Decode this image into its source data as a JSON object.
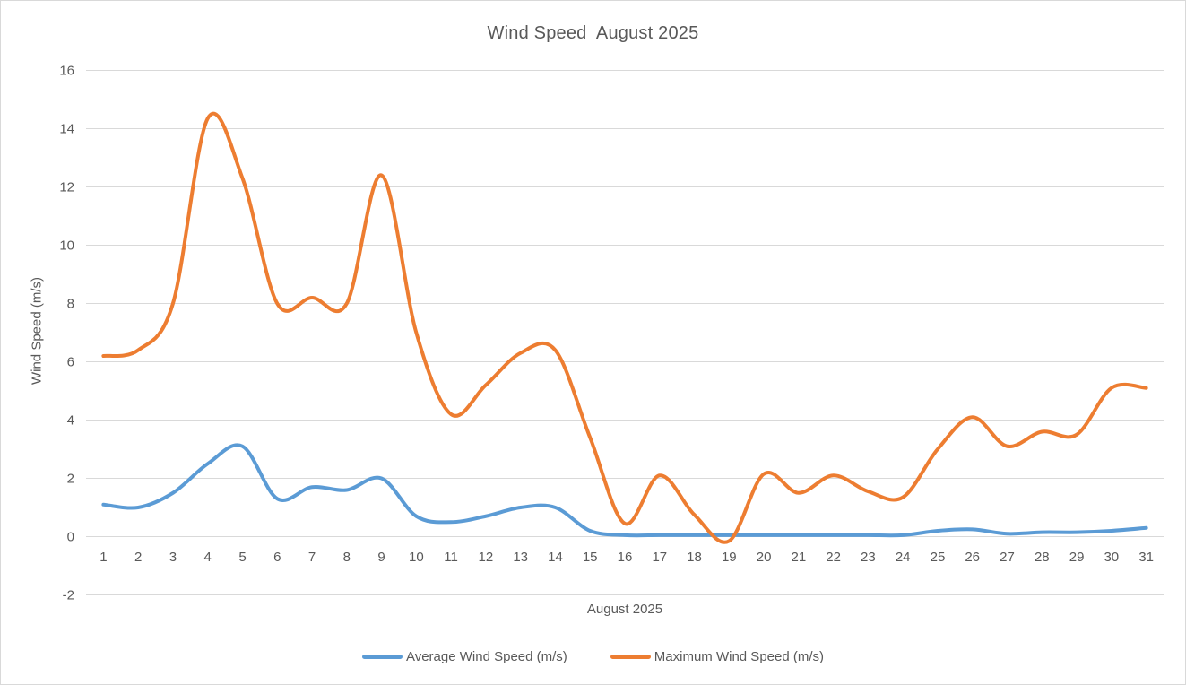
{
  "chart_data": {
    "type": "line",
    "title": "Wind Speed  August 2025",
    "xlabel": "August 2025",
    "ylabel": "Wind Speed (m/s)",
    "x": [
      1,
      2,
      3,
      4,
      5,
      6,
      7,
      8,
      9,
      10,
      11,
      12,
      13,
      14,
      15,
      16,
      17,
      18,
      19,
      20,
      21,
      22,
      23,
      24,
      25,
      26,
      27,
      28,
      29,
      30,
      31
    ],
    "y_ticks": [
      16,
      14,
      12,
      10,
      8,
      6,
      4,
      2,
      0,
      -2
    ],
    "ylim": [
      -2,
      16
    ],
    "grid": true,
    "line_style": "smooth",
    "legend_position": "bottom",
    "series": [
      {
        "name": "Average Wind Speed (m/s)",
        "color": "#5B9BD5",
        "values": [
          1.1,
          1.0,
          1.5,
          2.5,
          3.1,
          1.3,
          1.7,
          1.6,
          2.0,
          0.7,
          0.5,
          0.7,
          1.0,
          1.0,
          0.2,
          0.05,
          0.05,
          0.05,
          0.05,
          0.05,
          0.05,
          0.05,
          0.05,
          0.05,
          0.2,
          0.25,
          0.1,
          0.15,
          0.15,
          0.2,
          0.3
        ]
      },
      {
        "name": "Maximum Wind Speed (m/s)",
        "color": "#ED7D31",
        "values": [
          6.2,
          6.4,
          8.0,
          14.35,
          12.3,
          8.0,
          8.2,
          8.0,
          12.4,
          7.0,
          4.2,
          5.2,
          6.3,
          6.4,
          3.4,
          0.45,
          2.1,
          0.75,
          -0.15,
          2.15,
          1.5,
          2.1,
          1.55,
          1.35,
          3.0,
          4.1,
          3.1,
          3.6,
          3.5,
          5.1,
          5.1
        ]
      }
    ],
    "colors": {
      "grid": "#D9D9D9",
      "text": "#595959",
      "background": "#FFFFFF",
      "border": "#D9D9D9"
    }
  }
}
